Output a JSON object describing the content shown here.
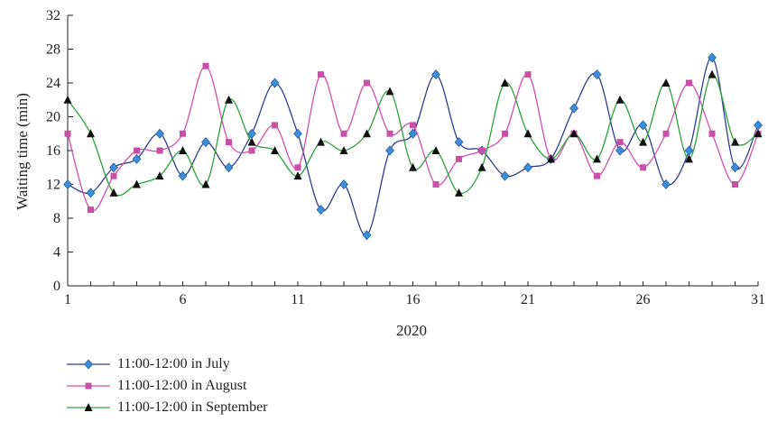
{
  "chart_data": {
    "type": "line",
    "xlabel": "2020",
    "ylabel": "Waiting time (min)",
    "xlim": [
      1,
      31
    ],
    "ylim": [
      0,
      32
    ],
    "x_ticks": [
      1,
      6,
      11,
      16,
      21,
      26,
      31
    ],
    "y_ticks": [
      0,
      4,
      8,
      12,
      16,
      20,
      24,
      28,
      32
    ],
    "legend_position": "bottom-left",
    "x": [
      1,
      2,
      3,
      4,
      5,
      6,
      7,
      8,
      9,
      10,
      11,
      12,
      13,
      14,
      15,
      16,
      17,
      18,
      19,
      20,
      21,
      22,
      23,
      24,
      25,
      26,
      27,
      28,
      29,
      30,
      31
    ],
    "series": [
      {
        "name": "11:00-12:00 in July",
        "color": "#2e3f8f",
        "marker_color": "#3b8fd9",
        "marker": "diamond",
        "values": [
          12,
          11,
          14,
          15,
          18,
          13,
          17,
          14,
          18,
          24,
          18,
          9,
          12,
          6,
          16,
          18,
          25,
          17,
          16,
          13,
          14,
          15,
          21,
          25,
          16,
          19,
          12,
          16,
          27,
          14,
          19
        ]
      },
      {
        "name": "11:00-12:00 in August",
        "color": "#d14fb0",
        "marker_color": "#c94fa8",
        "marker": "square",
        "values": [
          18,
          9,
          13,
          16,
          16,
          18,
          26,
          17,
          16,
          19,
          14,
          25,
          18,
          24,
          18,
          19,
          12,
          15,
          16,
          18,
          25,
          15,
          18,
          13,
          17,
          14,
          18,
          24,
          18,
          12,
          18
        ]
      },
      {
        "name": "11:00-12:00 in September",
        "color": "#2aa33a",
        "marker_color": "#111111",
        "marker": "triangle",
        "values": [
          22,
          18,
          11,
          12,
          13,
          16,
          12,
          22,
          17,
          16,
          13,
          17,
          16,
          18,
          23,
          14,
          16,
          11,
          14,
          24,
          18,
          15,
          18,
          15,
          22,
          17,
          24,
          15,
          25,
          17,
          18
        ]
      }
    ]
  }
}
